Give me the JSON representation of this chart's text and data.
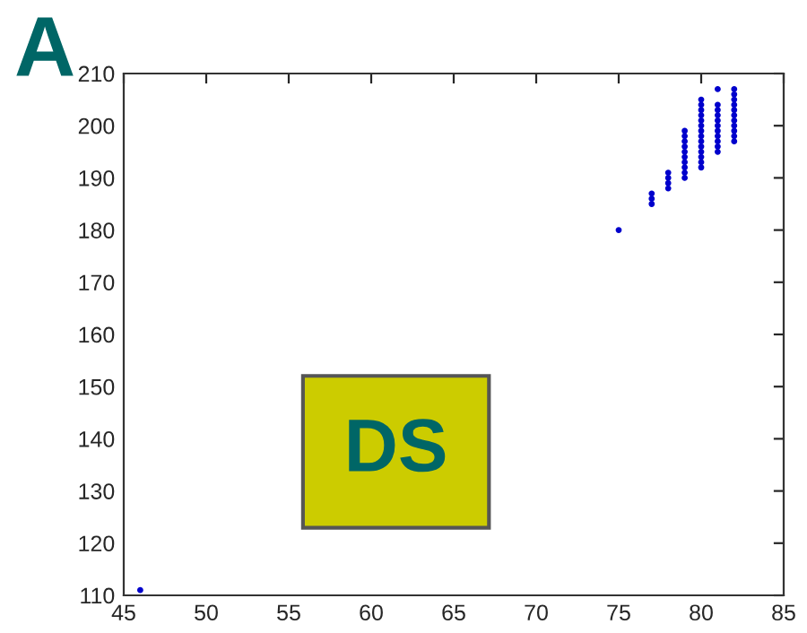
{
  "chart_data": {
    "type": "scatter",
    "x": [
      46,
      75,
      77,
      77,
      77,
      78,
      78,
      78,
      78,
      79,
      79,
      79,
      79,
      79,
      79,
      79,
      79,
      79,
      79,
      80,
      80,
      80,
      80,
      80,
      80,
      80,
      80,
      80,
      80,
      80,
      80,
      80,
      80,
      81,
      81,
      81,
      81,
      81,
      81,
      81,
      81,
      81,
      81,
      81,
      82,
      82,
      82,
      82,
      82,
      82,
      82,
      82,
      82,
      82,
      82
    ],
    "values": [
      111,
      180,
      185,
      186,
      187,
      188,
      189,
      190,
      191,
      190,
      191,
      192,
      193,
      194,
      195,
      196,
      197,
      198,
      199,
      192,
      193,
      194,
      195,
      196,
      197,
      198,
      199,
      200,
      201,
      202,
      203,
      204,
      205,
      195,
      196,
      197,
      198,
      199,
      200,
      201,
      202,
      203,
      204,
      207,
      197,
      198,
      199,
      200,
      201,
      202,
      203,
      204,
      205,
      206,
      207
    ],
    "color": "#0000cc",
    "marker": "circle",
    "grid": false,
    "xlim": [
      45,
      85
    ],
    "xticks": [
      45,
      50,
      55,
      60,
      65,
      70,
      75,
      80,
      85
    ],
    "ylim": [
      110,
      210
    ],
    "yticks": [
      110,
      120,
      130,
      140,
      150,
      160,
      170,
      180,
      190,
      200,
      210
    ],
    "annotations": [
      "A",
      "DS"
    ]
  }
}
